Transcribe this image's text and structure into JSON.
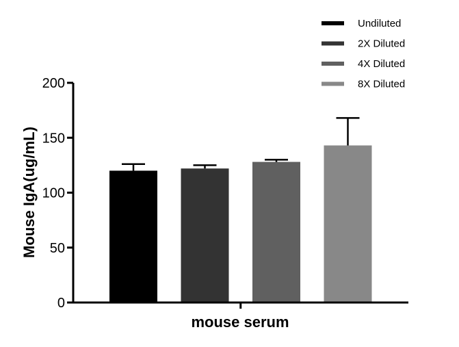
{
  "chart_data": {
    "type": "bar",
    "title": "",
    "xlabel": "mouse serum",
    "ylabel": "Mouse IgA(ug/mL)",
    "ylim": [
      0,
      200
    ],
    "yticks": [
      0,
      50,
      100,
      150,
      200
    ],
    "grid": false,
    "legend_position": "top-right",
    "categories": [
      "mouse serum"
    ],
    "series": [
      {
        "name": "Undiluted",
        "values": [
          120
        ],
        "error": [
          6
        ],
        "color": "#000000"
      },
      {
        "name": "2X Diluted",
        "values": [
          122
        ],
        "error": [
          3
        ],
        "color": "#333333"
      },
      {
        "name": "4X Diluted",
        "values": [
          128
        ],
        "error": [
          2
        ],
        "color": "#606060"
      },
      {
        "name": "8X Diluted",
        "values": [
          143
        ],
        "error": [
          25
        ],
        "color": "#888888"
      }
    ]
  }
}
